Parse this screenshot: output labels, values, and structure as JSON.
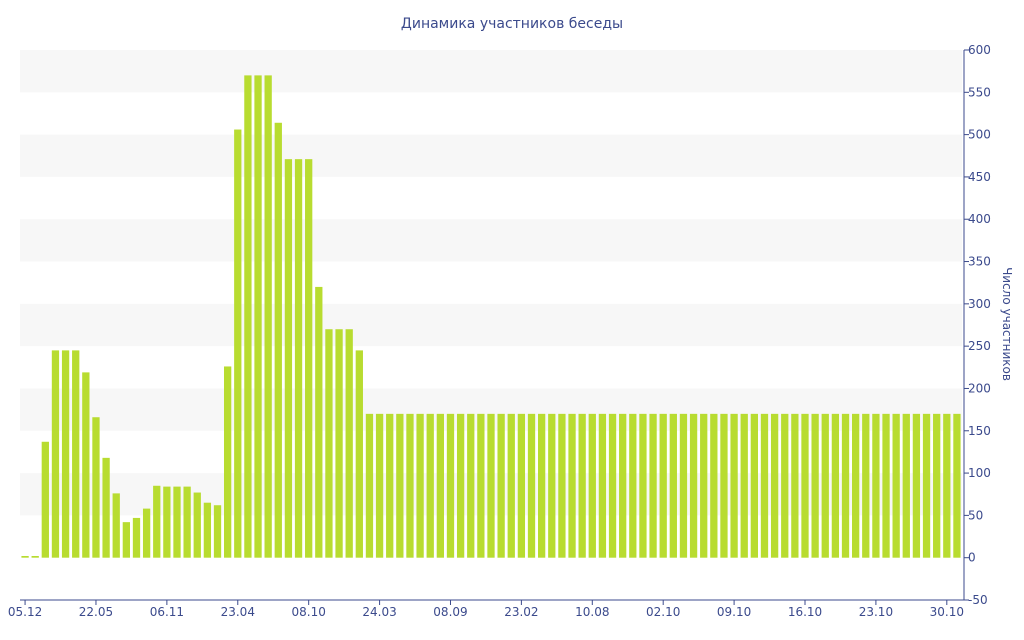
{
  "chart_data": {
    "type": "bar",
    "title": "Динамика участников беседы",
    "xlabel": "",
    "ylabel": "Число участников",
    "y_axis_side": "right",
    "ylim": [
      -50,
      600
    ],
    "y_ticks": [
      -50,
      0,
      50,
      100,
      150,
      200,
      250,
      300,
      350,
      400,
      450,
      500,
      550,
      600
    ],
    "grid": "alternating-bands",
    "bar_color": "#b8dc30",
    "x_tick_labels": [
      {
        "label": "05.12",
        "index": 0
      },
      {
        "label": "22.05",
        "index": 7
      },
      {
        "label": "06.11",
        "index": 14
      },
      {
        "label": "23.04",
        "index": 21
      },
      {
        "label": "08.10",
        "index": 28
      },
      {
        "label": "24.03",
        "index": 35
      },
      {
        "label": "08.09",
        "index": 42
      },
      {
        "label": "23.02",
        "index": 49
      },
      {
        "label": "10.08",
        "index": 56
      },
      {
        "label": "02.10",
        "index": 63
      },
      {
        "label": "09.10",
        "index": 70
      },
      {
        "label": "16.10",
        "index": 77
      },
      {
        "label": "23.10",
        "index": 84
      },
      {
        "label": "30.10",
        "index": 91
      }
    ],
    "values": [
      2,
      2,
      137,
      245,
      245,
      245,
      219,
      166,
      118,
      76,
      42,
      47,
      58,
      85,
      84,
      84,
      84,
      77,
      65,
      62,
      226,
      506,
      570,
      570,
      570,
      514,
      471,
      471,
      471,
      320,
      270,
      270,
      270,
      245,
      170,
      170,
      170,
      170,
      170,
      170,
      170,
      170,
      170,
      170,
      170,
      170,
      170,
      170,
      170,
      170,
      170,
      170,
      170,
      170,
      170,
      170,
      170,
      170,
      170,
      170,
      170,
      170,
      170,
      170,
      170,
      170,
      170,
      170,
      170,
      170,
      170,
      170,
      170,
      170,
      170,
      170,
      170,
      170,
      170,
      170,
      170,
      170,
      170,
      170,
      170,
      170,
      170,
      170,
      170,
      170,
      170,
      170,
      170
    ]
  }
}
